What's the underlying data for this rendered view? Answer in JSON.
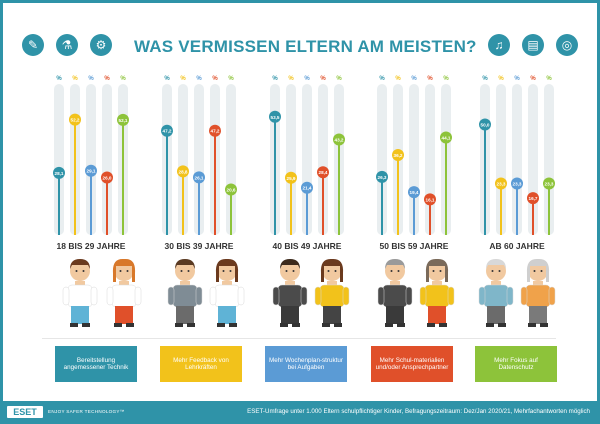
{
  "header": {
    "title": "WAS VERMISSEN ELTERN AM MEISTEN?",
    "left_icons": [
      "palette-icon",
      "flask-icon",
      "microscope-icon"
    ],
    "right_icons": [
      "headphones-icon",
      "book-icon",
      "globe-icon"
    ]
  },
  "colors": {
    "frame": "#2f93a8",
    "track": "#e9eef0",
    "series": [
      "#2f93a8",
      "#f2c21b",
      "#5b9bd5",
      "#e0502a",
      "#8dc33a"
    ]
  },
  "chart_data": {
    "type": "bar",
    "unit": "%",
    "categories": [
      "18 BIS 29 JAHRE",
      "30 BIS 39 JAHRE",
      "40 BIS 49 JAHRE",
      "50 BIS 59 JAHRE",
      "AB 60 JAHRE"
    ],
    "series": [
      {
        "name": "Bereitstellung angemessener Technik",
        "values": [
          28.1,
          47.2,
          53.5,
          26.3,
          50.0
        ]
      },
      {
        "name": "Mehr Feedback von Lehrkräften",
        "values": [
          52.2,
          28.8,
          25.9,
          36.2,
          23.3
        ]
      },
      {
        "name": "Mehr Wochenplan-struktur bei Aufgaben",
        "values": [
          29.1,
          26.1,
          21.4,
          19.4,
          23.3
        ]
      },
      {
        "name": "Mehr Schul-materialien und/oder Ansprechpartner",
        "values": [
          26.0,
          47.2,
          28.4,
          16.1,
          16.7
        ]
      },
      {
        "name": "Mehr Fokus auf Datenschutz",
        "values": [
          52.1,
          20.6,
          43.2,
          44.1,
          23.3
        ]
      }
    ],
    "value_labels": [
      [
        "28,1",
        "52,2",
        "29,1",
        "26,0",
        "52,1"
      ],
      [
        "47,2",
        "28,8",
        "26,1",
        "47,2",
        "20,6"
      ],
      [
        "53,5",
        "25,9",
        "21,4",
        "28,4",
        "43,2"
      ],
      [
        "26,3",
        "36,2",
        "19,4",
        "16,1",
        "44,1"
      ],
      [
        "50,0",
        "23,3",
        "23,3",
        "16,7",
        "23,3"
      ]
    ],
    "ylim": [
      0,
      62
    ]
  },
  "legend": [
    {
      "label": "Bereitstellung angemessener Technik",
      "color": "#2f93a8"
    },
    {
      "label": "Mehr Feedback von Lehrkräften",
      "color": "#f2c21b"
    },
    {
      "label": "Mehr Wochenplan-struktur bei Aufgaben",
      "color": "#5b9bd5"
    },
    {
      "label": "Mehr Schul-materialien und/oder Ansprechpartner",
      "color": "#e0502a"
    },
    {
      "label": "Mehr Fokus auf Datenschutz",
      "color": "#8dc33a"
    }
  ],
  "people": [
    {
      "group": "18 BIS 29 JAHRE",
      "hair": [
        "#6b3a1e",
        "#d8782a"
      ],
      "top": [
        "#ffffff",
        "#ffffff"
      ],
      "bottom": [
        "#5fb3d6",
        "#e0502a"
      ]
    },
    {
      "group": "30 BIS 39 JAHRE",
      "hair": [
        "#5a3a22",
        "#6b3a1e"
      ],
      "top": [
        "#7f8c95",
        "#ffffff"
      ],
      "bottom": [
        "#6b6b6b",
        "#5fb3d6"
      ]
    },
    {
      "group": "40 BIS 49 JAHRE",
      "hair": [
        "#3d2a1c",
        "#6b3a1e"
      ],
      "top": [
        "#4b4b4b",
        "#f2c21b"
      ],
      "bottom": [
        "#3a3a3a",
        "#444"
      ]
    },
    {
      "group": "50 BIS 59 JAHRE",
      "hair": [
        "#9a9a9a",
        "#7a6a5a"
      ],
      "top": [
        "#4b4b4b",
        "#f2c21b"
      ],
      "bottom": [
        "#3a3a3a",
        "#e0502a"
      ]
    },
    {
      "group": "AB 60 JAHRE",
      "hair": [
        "#d8d8d8",
        "#cfcfcf"
      ],
      "top": [
        "#7fb6c9",
        "#f0a24a"
      ],
      "bottom": [
        "#6b6b6b",
        "#7a7a7a"
      ]
    }
  ],
  "footer": {
    "logo": "ESET",
    "tagline": "ENJOY SAFER TECHNOLOGY™",
    "note": "ESET-Umfrage unter 1.000 Eltern schulpflichtiger Kinder, Befragungszeitraum: Dez/Jan 2020/21, Mehrfachantworten möglich"
  }
}
